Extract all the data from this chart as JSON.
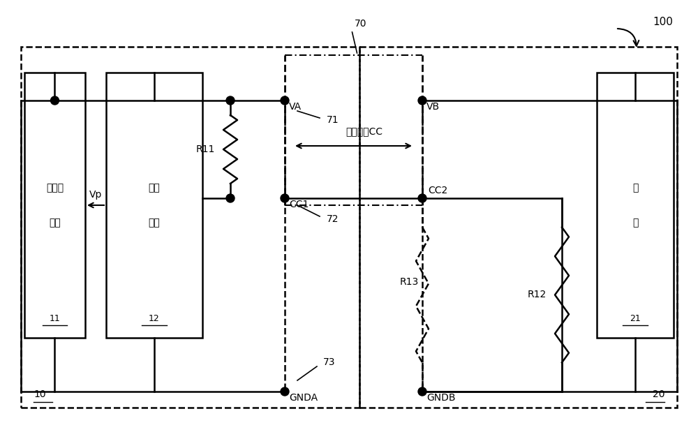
{
  "bg_color": "#ffffff",
  "label_100": "100",
  "label_10": "10",
  "label_20": "20",
  "label_70": "70",
  "label_71": "71",
  "label_72": "72",
  "label_73": "73",
  "box10_line1": "电源转",
  "box10_line2": "换器",
  "box10_num": "11",
  "box12_line1": "控制",
  "box12_line2": "电路",
  "box12_num": "12",
  "box21_line1": "负",
  "box21_line2": "载",
  "box21_num": "21",
  "label_VA": "VA",
  "label_VB": "VB",
  "label_CC1": "CC1",
  "label_CC2": "CC2",
  "label_GNDA": "GNDA",
  "label_GNDB": "GNDB",
  "label_R11": "R11",
  "label_R12": "R12",
  "label_R13": "R13",
  "label_Vp": "Vp",
  "label_CC": "传输讯号CC"
}
